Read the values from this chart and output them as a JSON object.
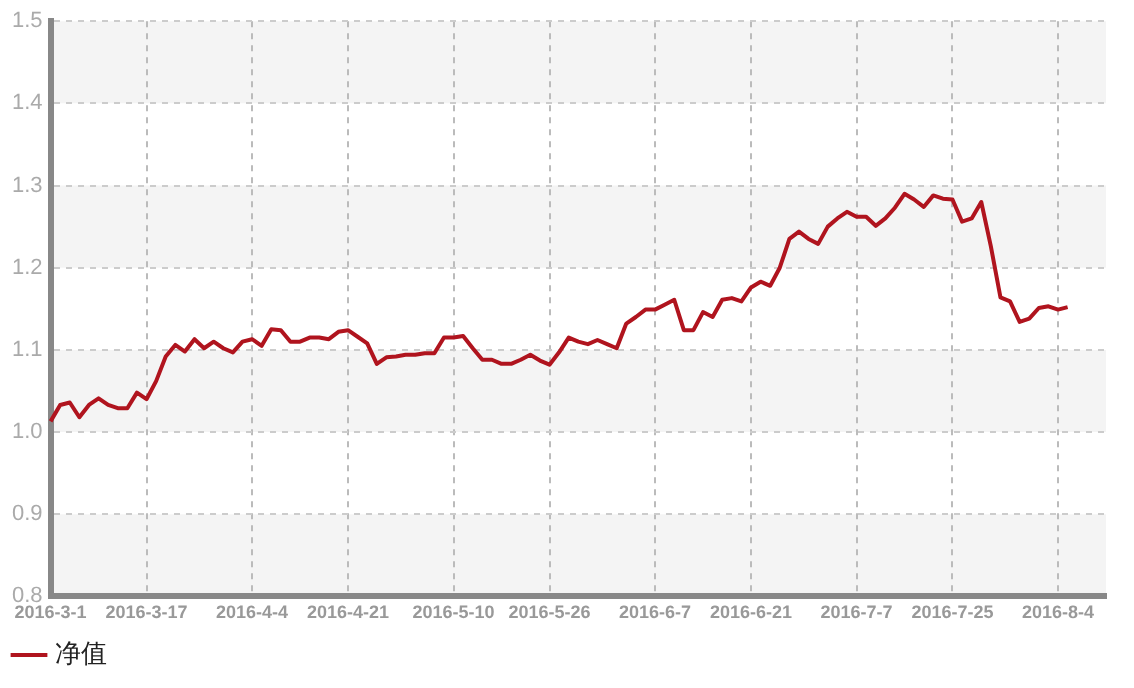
{
  "chart_data": {
    "type": "line",
    "categories": [
      "2016-3-1",
      null,
      null,
      null,
      null,
      null,
      null,
      null,
      null,
      null,
      "2016-3-17",
      null,
      null,
      null,
      null,
      null,
      null,
      null,
      null,
      null,
      null,
      "2016-4-4",
      null,
      null,
      null,
      null,
      null,
      null,
      null,
      null,
      null,
      "2016-4-21",
      null,
      null,
      null,
      null,
      null,
      null,
      null,
      null,
      null,
      null,
      "2016-5-10",
      null,
      null,
      null,
      null,
      null,
      null,
      null,
      null,
      null,
      "2016-5-26",
      null,
      null,
      null,
      null,
      null,
      null,
      null,
      null,
      null,
      null,
      "2016-6-7",
      null,
      null,
      null,
      null,
      null,
      null,
      null,
      null,
      null,
      "2016-6-21",
      null,
      null,
      null,
      null,
      null,
      null,
      null,
      null,
      null,
      null,
      "2016-7-7",
      null,
      null,
      null,
      null,
      null,
      null,
      null,
      null,
      null,
      "2016-7-25",
      null,
      null,
      null,
      null,
      null,
      null,
      null,
      null,
      null,
      null,
      "2016-8-4",
      null,
      null,
      null,
      null,
      null
    ],
    "series": [
      {
        "name": "净值",
        "color": "#b0141e",
        "values": [
          1.013,
          1.033,
          1.036,
          1.018,
          1.033,
          1.041,
          1.033,
          1.029,
          1.029,
          1.048,
          1.04,
          1.062,
          1.092,
          1.106,
          1.098,
          1.113,
          1.102,
          1.11,
          1.102,
          1.097,
          1.11,
          1.113,
          1.105,
          1.125,
          1.124,
          1.11,
          1.11,
          1.115,
          1.115,
          1.113,
          1.122,
          1.124,
          1.116,
          1.108,
          1.083,
          1.091,
          1.092,
          1.094,
          1.094,
          1.096,
          1.096,
          1.115,
          1.115,
          1.117,
          1.102,
          1.088,
          1.088,
          1.083,
          1.083,
          1.088,
          1.094,
          1.087,
          1.082,
          1.097,
          1.115,
          1.11,
          1.107,
          1.112,
          1.107,
          1.102,
          1.132,
          1.14,
          1.149,
          1.149,
          1.155,
          1.161,
          1.124,
          1.124,
          1.146,
          1.14,
          1.161,
          1.163,
          1.159,
          1.176,
          1.183,
          1.178,
          1.2,
          1.235,
          1.244,
          1.235,
          1.229,
          1.25,
          1.26,
          1.268,
          1.262,
          1.262,
          1.251,
          1.26,
          1.273,
          1.29,
          1.283,
          1.274,
          1.288,
          1.284,
          1.283,
          1.256,
          1.26,
          1.28,
          1.226,
          1.164,
          1.159,
          1.134,
          1.138,
          1.151,
          1.153,
          1.149,
          1.152,
          null,
          null,
          null,
          null
        ]
      }
    ],
    "ylim": [
      0.8,
      1.5
    ],
    "yticks": [
      0.8,
      0.9,
      {
        "value": 1.0,
        "label": "1.0"
      },
      1.1,
      1.2,
      1.3,
      1.4,
      1.5
    ],
    "grid": true,
    "legend": "bottom left",
    "marker": "none",
    "line_style": "solid"
  }
}
